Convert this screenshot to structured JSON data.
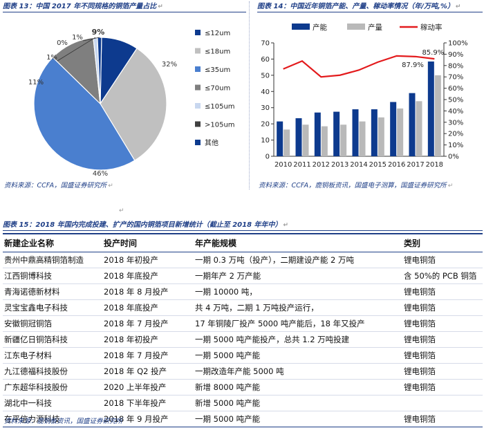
{
  "fig13": {
    "caption": "图表 13：中国 2017 年不同规格的铜箔产量占比",
    "source": "资料来源：CCFA，国盛证券研究所"
  },
  "fig14": {
    "caption": "图表 14：中国近年铜箔产能、产量、稼动率情况（年/万吨,%）",
    "source": "资料来源：CCFA，鹿铜板资讯，国盛电子测算，国盛证券研究所"
  },
  "fig15": {
    "caption": "图表 15：2018 年国内完成投建、扩产的国内铜箔项目新增统计（截止至 2018 年年中）",
    "source": "资料来源：鹿铜板资讯，国盛证券研究所"
  },
  "table": {
    "headers": [
      "新建企业名称",
      "投产时间",
      "年产能规模",
      "类别"
    ],
    "rows": [
      [
        "贵州中鼎高精铜箔制造",
        "2018 年初投产",
        "一期 0.3 万吨（投产），二期建设产能 2 万吨",
        "锂电铜箔"
      ],
      [
        "江西铜博科技",
        "2018 年底投产",
        "一期年产 2 万产能",
        "含 50%的 PCB 铜箔"
      ],
      [
        "青海诺德新材料",
        "2018 年 8 月投产",
        "一期 10000 吨，",
        "锂电铜箔"
      ],
      [
        "灵宝宝鑫电子科技",
        "2018 年底投产",
        "共 4 万吨，二期 1 万吨投产运行，",
        "锂电铜箔"
      ],
      [
        "安徽铜冠铜箔",
        "2018 年 7 月投产",
        "17 年铜陵厂投产 5000 吨产能后，18 年又投产",
        "锂电铜箔"
      ],
      [
        "新疆亿日铜箔科技",
        "2018 年初投产",
        "一期 5000 吨产能投产，总共 1.2 万吨投建",
        "锂电铜箔"
      ],
      [
        "江东电子材料",
        "2018 年 7 月投产",
        "一期 5000 吨产能",
        "锂电铜箔"
      ],
      [
        "九江德福科技股份",
        "2018 年 Q2 投产",
        "一期改造年产能 5000 吨",
        "锂电铜箔"
      ],
      [
        "广东超华科技股份",
        "2020 上半年投产",
        "新增 8000 吨产能",
        "锂电铜箔"
      ],
      [
        "湖北中一科技",
        "2018 下半年投产",
        "新增 5000 吨产能",
        ""
      ],
      [
        "在平信力源科技",
        "2018 年 9 月投产",
        "一期 5000 吨产能",
        "锂电铜箔"
      ]
    ]
  },
  "chart_data": [
    {
      "type": "pie",
      "labels": [
        "≤12um",
        "≤18um",
        "≤35um",
        "≤70um",
        "≤105um",
        ">105um",
        "其他"
      ],
      "values": [
        9,
        32,
        46,
        11,
        1,
        0,
        1
      ],
      "value_labels": [
        "9%",
        "32%",
        "46%",
        "11%",
        "1%",
        "0%",
        "1%"
      ],
      "colors": [
        "#0d3a8e",
        "#c0c0c0",
        "#4a7fcf",
        "#7f7f7f",
        "#c8d7ef",
        "#404040",
        "#0d3a8e"
      ],
      "legend_position": "right"
    },
    {
      "type": "bar",
      "categories": [
        "2010",
        "2011",
        "2012",
        "2013",
        "2014",
        "2015",
        "2016",
        "2017",
        "2018"
      ],
      "series": [
        {
          "name": "产能",
          "values": [
            21.5,
            23.5,
            27,
            27.5,
            29,
            29,
            33.5,
            39,
            58.5
          ],
          "color": "#0d3a8e"
        },
        {
          "name": "产量",
          "values": [
            16.5,
            19.5,
            18.5,
            19.5,
            21.5,
            24,
            29.5,
            34,
            50
          ],
          "color": "#b9b9b9"
        },
        {
          "name": "稼动率",
          "type": "line",
          "axis": "right",
          "values": [
            77,
            84,
            70,
            71.5,
            76,
            83,
            88.5,
            87.9,
            85.9
          ],
          "color": "#e31a1c"
        }
      ],
      "annotations": [
        "87.9%",
        "85.9%"
      ],
      "ylim": [
        0,
        70
      ],
      "yticks": [
        "0",
        "10",
        "20",
        "30",
        "40",
        "50",
        "60",
        "70"
      ],
      "y2lim": [
        0,
        100
      ],
      "y2ticks": [
        "0%",
        "10%",
        "20%",
        "30%",
        "40%",
        "50%",
        "60%",
        "70%",
        "80%",
        "90%",
        "100%"
      ],
      "legend_position": "top",
      "grid": false
    }
  ]
}
